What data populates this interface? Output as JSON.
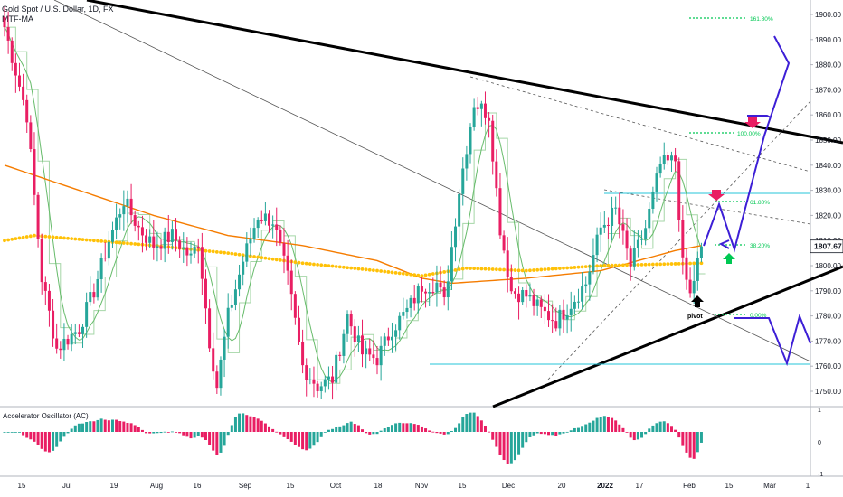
{
  "header": {
    "title": "Gold Spot / U.S. Dollar, 1D, FX",
    "indicator": "MTF-MA"
  },
  "oscillator": {
    "label": "Accelerator Oscillator (AC)",
    "ticks": [
      "1",
      "0",
      "-1"
    ]
  },
  "price_axis": {
    "ticks": [
      "1900.00",
      "1890.00",
      "1880.00",
      "1870.00",
      "1860.00",
      "1850.00",
      "1840.00",
      "1830.00",
      "1820.00",
      "1810.00",
      "1800.00",
      "1790.00",
      "1780.00",
      "1770.00",
      "1760.00",
      "1750.00"
    ],
    "current_price": "1807.67"
  },
  "time_axis": {
    "ticks": [
      "15",
      "Jul",
      "19",
      "Aug",
      "16",
      "Sep",
      "15",
      "Oct",
      "18",
      "Nov",
      "15",
      "Dec",
      "20",
      "2022",
      "17",
      "Feb",
      "15",
      "Mar",
      "1"
    ]
  },
  "annotations": {
    "fib": [
      "161.80%",
      "61.80%",
      "38.20%",
      "0.00%",
      "100.00%"
    ],
    "pivot": "pivot"
  },
  "colors": {
    "bull": "#26a69a",
    "bear": "#e91e63",
    "ma_orange": "#f57c00",
    "ma_dots": "#ffc107",
    "ma_green": "#66bb6a",
    "ma_light": "#a5d6a7",
    "cyan": "#26c6da",
    "blue_path": "#3d1fd6",
    "fib_green": "#00c853",
    "arrow_magenta": "#e91e63",
    "arrow_green": "#00c853"
  },
  "chart_data": [
    {
      "type": "candlestick",
      "symbol": "Gold Spot / U.S. Dollar",
      "timeframe": "1D",
      "ylim": [
        1745,
        1905
      ],
      "anchors": [
        {
          "i": 0,
          "v": 1895
        },
        {
          "i": 6,
          "v": 1860
        },
        {
          "i": 10,
          "v": 1795
        },
        {
          "i": 14,
          "v": 1767
        },
        {
          "i": 20,
          "v": 1775
        },
        {
          "i": 24,
          "v": 1790
        },
        {
          "i": 28,
          "v": 1810
        },
        {
          "i": 32,
          "v": 1826
        },
        {
          "i": 36,
          "v": 1815
        },
        {
          "i": 40,
          "v": 1808
        },
        {
          "i": 45,
          "v": 1812
        },
        {
          "i": 50,
          "v": 1803
        },
        {
          "i": 52,
          "v": 1810
        },
        {
          "i": 55,
          "v": 1770
        },
        {
          "i": 57,
          "v": 1752
        },
        {
          "i": 60,
          "v": 1780
        },
        {
          "i": 64,
          "v": 1802
        },
        {
          "i": 68,
          "v": 1820
        },
        {
          "i": 72,
          "v": 1818
        },
        {
          "i": 76,
          "v": 1795
        },
        {
          "i": 80,
          "v": 1760
        },
        {
          "i": 84,
          "v": 1752
        },
        {
          "i": 88,
          "v": 1755
        },
        {
          "i": 92,
          "v": 1780
        },
        {
          "i": 96,
          "v": 1765
        },
        {
          "i": 100,
          "v": 1763
        },
        {
          "i": 104,
          "v": 1775
        },
        {
          "i": 108,
          "v": 1782
        },
        {
          "i": 112,
          "v": 1792
        },
        {
          "i": 116,
          "v": 1793
        },
        {
          "i": 118,
          "v": 1785
        },
        {
          "i": 122,
          "v": 1830
        },
        {
          "i": 126,
          "v": 1865
        },
        {
          "i": 130,
          "v": 1860
        },
        {
          "i": 133,
          "v": 1815
        },
        {
          "i": 136,
          "v": 1790
        },
        {
          "i": 140,
          "v": 1788
        },
        {
          "i": 144,
          "v": 1782
        },
        {
          "i": 148,
          "v": 1778
        },
        {
          "i": 152,
          "v": 1785
        },
        {
          "i": 156,
          "v": 1793
        },
        {
          "i": 160,
          "v": 1815
        },
        {
          "i": 164,
          "v": 1822
        },
        {
          "i": 168,
          "v": 1800
        },
        {
          "i": 172,
          "v": 1815
        },
        {
          "i": 176,
          "v": 1840
        },
        {
          "i": 180,
          "v": 1842
        },
        {
          "i": 182,
          "v": 1800
        },
        {
          "i": 184,
          "v": 1788
        },
        {
          "i": 187,
          "v": 1808
        }
      ],
      "series": [
        {
          "name": "orange MA",
          "values": [
            {
              "i": 0,
              "v": 1840
            },
            {
              "i": 20,
              "v": 1830
            },
            {
              "i": 40,
              "v": 1820
            },
            {
              "i": 60,
              "v": 1812
            },
            {
              "i": 80,
              "v": 1808
            },
            {
              "i": 100,
              "v": 1802
            },
            {
              "i": 112,
              "v": 1795
            },
            {
              "i": 120,
              "v": 1793
            },
            {
              "i": 140,
              "v": 1795
            },
            {
              "i": 160,
              "v": 1798
            },
            {
              "i": 180,
              "v": 1806
            },
            {
              "i": 187,
              "v": 1808
            }
          ]
        },
        {
          "name": "yellow dotted MA",
          "values": [
            {
              "i": 0,
              "v": 1810
            },
            {
              "i": 8,
              "v": 1812
            },
            {
              "i": 40,
              "v": 1808
            },
            {
              "i": 60,
              "v": 1805
            },
            {
              "i": 80,
              "v": 1801
            },
            {
              "i": 100,
              "v": 1798
            },
            {
              "i": 112,
              "v": 1796
            },
            {
              "i": 124,
              "v": 1799
            },
            {
              "i": 140,
              "v": 1798
            },
            {
              "i": 160,
              "v": 1800
            },
            {
              "i": 187,
              "v": 1801
            }
          ]
        }
      ],
      "last_price": 1807.67
    },
    {
      "type": "bar",
      "title": "Accelerator Oscillator (AC)",
      "ylim": [
        -1,
        1
      ]
    }
  ]
}
